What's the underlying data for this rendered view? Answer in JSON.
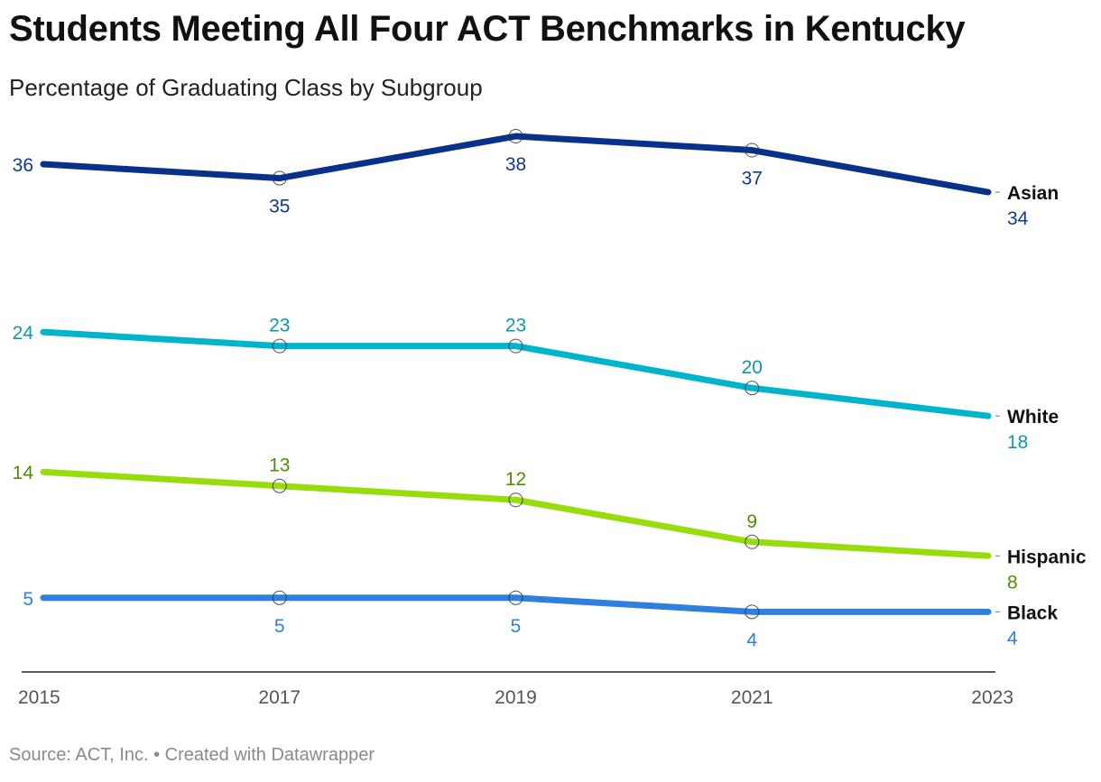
{
  "header": {
    "title": "Students Meeting All Four ACT Benchmarks in Kentucky",
    "subtitle": "Percentage of Graduating Class by Subgroup"
  },
  "footer": {
    "source_label": "Source: ACT, Inc.",
    "separator": " • ",
    "credit": "Created with Datawrapper"
  },
  "chart_data": {
    "type": "line",
    "title": "Students Meeting All Four ACT Benchmarks in Kentucky",
    "subtitle": "Percentage of Graduating Class by Subgroup",
    "xlabel": "",
    "ylabel": "",
    "x": [
      "2015",
      "2017",
      "2019",
      "2021",
      "2023"
    ],
    "ylim": [
      -0.3,
      40
    ],
    "grid": false,
    "legend": "direct labels at line ends (right)",
    "series": [
      {
        "name": "Asian",
        "color": "#08318a",
        "label_color": "#0d3a8c",
        "values": [
          36,
          35,
          38,
          37,
          34
        ],
        "label_pos": [
          "left",
          "below",
          "below",
          "below",
          "end"
        ]
      },
      {
        "name": "White",
        "color": "#00b4cc",
        "label_color": "#0e97a8",
        "values": [
          24,
          23,
          23,
          20,
          18
        ],
        "label_pos": [
          "left",
          "above",
          "above",
          "above",
          "end"
        ]
      },
      {
        "name": "Hispanic",
        "color": "#99dc0d",
        "label_color": "#4e8e00",
        "values": [
          14,
          13,
          12,
          9,
          8
        ],
        "label_pos": [
          "left",
          "above",
          "above",
          "above",
          "end"
        ]
      },
      {
        "name": "Black",
        "color": "#2f7fe0",
        "label_color": "#2f7fe0",
        "values": [
          5,
          5,
          5,
          4,
          4
        ],
        "label_pos": [
          "left",
          "below",
          "below",
          "below",
          "end"
        ]
      }
    ]
  }
}
